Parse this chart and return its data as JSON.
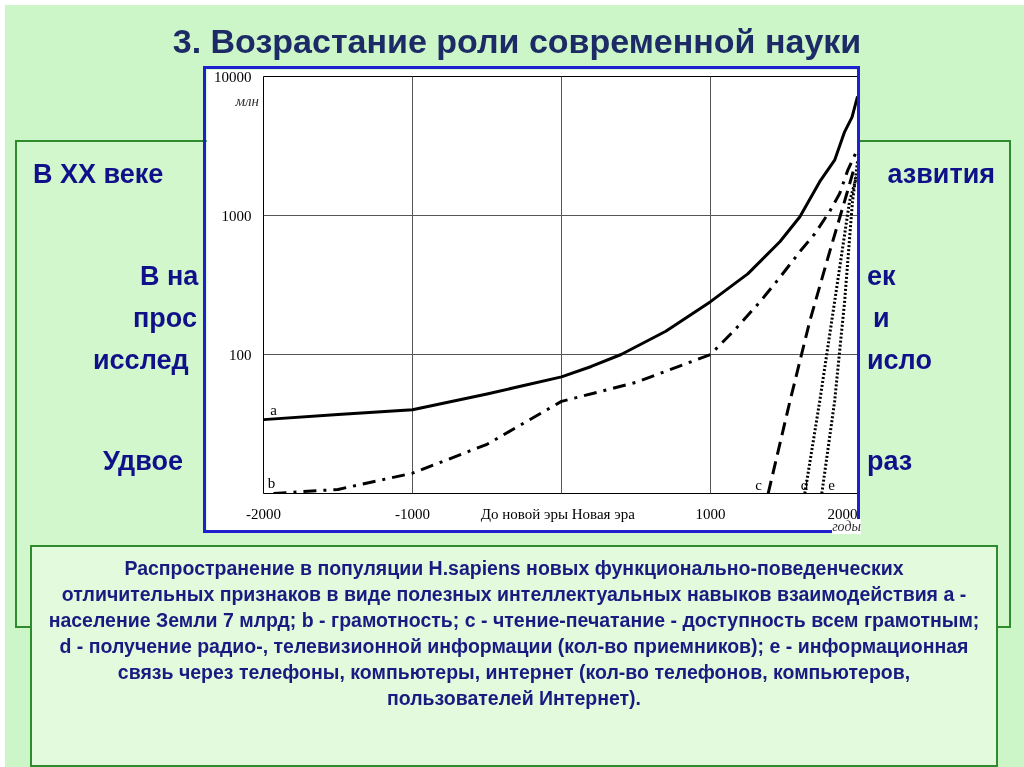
{
  "chart_data": {
    "type": "line",
    "title": "3. Возрастание роли современной науки",
    "ylabel": "млн",
    "xlabel": "годы",
    "log": "y",
    "grid": true,
    "marker": "none",
    "xlim": [
      -2000,
      2000
    ],
    "xticks": [
      -2000,
      -1000,
      {
        "value": 0,
        "label": "До новой эры   Новая эра"
      },
      1000,
      2000
    ],
    "ylim": [
      10,
      10000
    ],
    "yticks": [
      {
        "value": 10,
        "label": null
      },
      100,
      1000,
      10000
    ],
    "series": [
      {
        "color": "#000000",
        "line_style": "solid",
        "x": [
          -2000,
          -1500,
          -1000,
          -500,
          0,
          200,
          400,
          700,
          1000,
          1250,
          1467,
          1600,
          1733,
          1833,
          1900,
          1950,
          1987
        ],
        "values": [
          34,
          37,
          40,
          52,
          69,
          82,
          100,
          147,
          240,
          380,
          650,
          980,
          1750,
          2500,
          4000,
          5100,
          7200
        ]
      },
      {
        "color": "#000000",
        "line_style": "dashdot",
        "x": [
          -1933,
          -1500,
          -1000,
          -500,
          0,
          500,
          1000,
          1167,
          1333,
          1467,
          1600,
          1700,
          1800,
          1867,
          1920,
          1980
        ],
        "values": [
          10,
          10.7,
          14,
          22.6,
          46,
          63,
          100,
          152,
          240,
          360,
          550,
          740,
          1070,
          1440,
          2100,
          2900
        ]
      },
      {
        "color": "#000000",
        "line_style": "dashed",
        "x": [
          1387,
          1533,
          1667,
          1800,
          1920,
          1967
        ],
        "values": [
          10,
          46,
          175,
          550,
          1500,
          2250
        ]
      },
      {
        "color": "#000000",
        "line_style": "dotted",
        "x": [
          1633,
          1733,
          1833,
          1933,
          1980
        ],
        "values": [
          10,
          46,
          240,
          1260,
          1900
        ]
      },
      {
        "color": "#000000",
        "line_style": "dotted",
        "x": [
          1747,
          1833,
          1900,
          1953,
          1987
        ],
        "values": [
          10,
          46,
          240,
          1260,
          2450
        ]
      }
    ],
    "annotations": [
      "a",
      "b",
      "c",
      "d",
      "e",
      "В XX веке",
      "азвития",
      "В на",
      "ек",
      "прос",
      "и",
      "исслед",
      "исло",
      "Удвое",
      "раз",
      "Распространение в популяции H.sapiens новых функционально-поведенческих отличительных признаков в виде полезных интеллектуальных навыков взаимодействия a - население Земли 7 млрд; b - грамотность; c - чтение-печатание - доступность всем грамотным; d - получение радио-, телевизионной информации (кол-во приемников); e - информационная связь через телефоны, компьютеры, интернет (кол-во телефонов, компьютеров, пользователей Интернет)."
    ]
  }
}
